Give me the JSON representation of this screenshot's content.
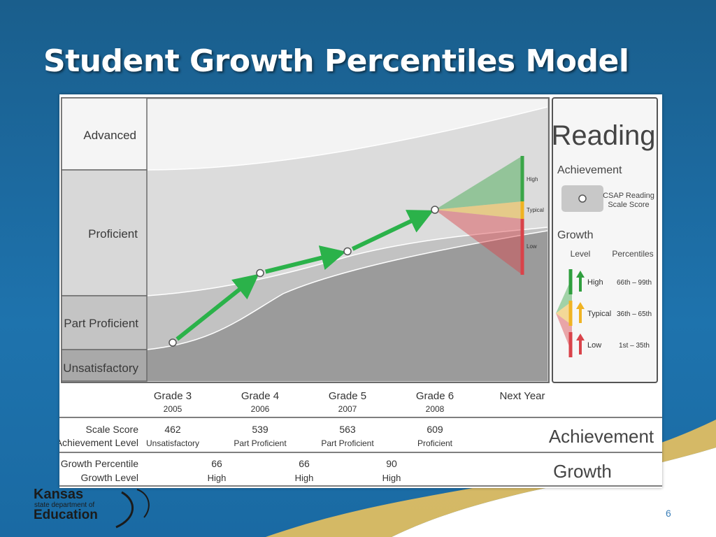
{
  "slide": {
    "title": "Student Growth Percentiles Model",
    "page_number": "6",
    "logo": {
      "line1": "Kansas",
      "line2": "state department of",
      "line3": "Education"
    }
  },
  "chart_data": {
    "type": "line",
    "title": "",
    "subject": "Reading",
    "achievement_levels": [
      "Advanced",
      "Proficient",
      "Part Proficient",
      "Unsatisfactory"
    ],
    "x": [
      "Grade 3",
      "Grade 4",
      "Grade 5",
      "Grade 6",
      "Next Year"
    ],
    "x_sub": [
      "2005",
      "2006",
      "2007",
      "2008",
      ""
    ],
    "series": [
      {
        "values": [
          462,
          539,
          563,
          609,
          null
        ]
      }
    ],
    "projection_bands": [
      "High",
      "Typical",
      "Low"
    ],
    "table": {
      "row1_labels": [
        "Scale Score",
        "Achievement Level"
      ],
      "row2_labels": [
        "Growth Percentile",
        "Growth Level"
      ],
      "scale_scores": [
        "462",
        "539",
        "563",
        "609"
      ],
      "achievement_values": [
        "Unsatisfactory",
        "Part Proficient",
        "Part Proficient",
        "Proficient"
      ],
      "growth_percentiles": [
        "66",
        "66",
        "90"
      ],
      "growth_levels": [
        "High",
        "High",
        "High"
      ],
      "row1_heading": "Achievement",
      "row2_heading": "Growth"
    },
    "legend": {
      "title": "Reading",
      "achievement_heading": "Achievement",
      "marker_label": [
        "CSAP Reading",
        "Scale Score"
      ],
      "growth_heading": "Growth",
      "col_level": "Level",
      "col_percentiles": "Percentiles",
      "rows": [
        {
          "level": "High",
          "range": "66th – 99th",
          "color": "#2f9e3e"
        },
        {
          "level": "Typical",
          "range": "36th – 65th",
          "color": "#f0b323"
        },
        {
          "level": "Low",
          "range": "1st – 35th",
          "color": "#d9434a"
        }
      ]
    },
    "colors": {
      "arrow": "#2bb24a",
      "high": "#3aa648",
      "typical": "#f0b323",
      "low": "#d9434a"
    }
  }
}
